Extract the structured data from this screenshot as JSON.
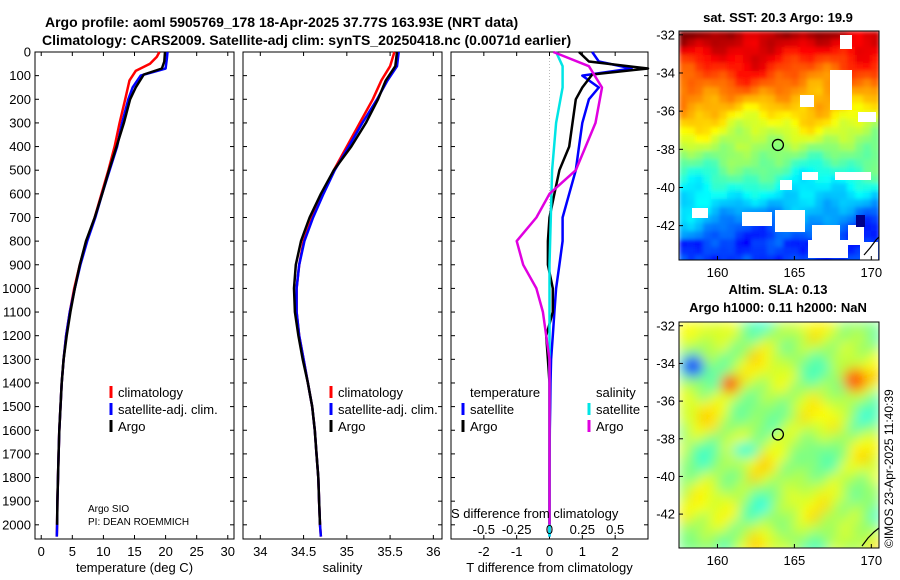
{
  "titles": {
    "line1": "Argo profile: aoml 5905769_178 18-Apr-2025 37.77S 163.93E (NRT data)",
    "line2": "Climatology: CARS2009. Satellite-adj clim: synTS_20250418.nc (0.0071d earlier)",
    "sst": "sat. SST: 20.3 Argo: 19.9",
    "sla1": "Altim. SLA: 0.13",
    "sla2": "Argo h1000: 0.11 h2000: NaN",
    "credit": "©IMOS 23-Apr-2025 11:40:39"
  },
  "notes": {
    "institution": "Argo SIO",
    "pi": "PI: DEAN ROEMMICH"
  },
  "colors": {
    "climatology": "#ff0000",
    "satellite": "#0000ff",
    "argo": "#000000",
    "sat_s": "#00e5e5",
    "argo_s": "#e000e0"
  },
  "chart_data": [
    {
      "type": "line",
      "name": "temperature-profile",
      "xlabel": "temperature (deg C)",
      "ylabel": "",
      "xlim": [
        -1,
        31
      ],
      "ylim": [
        2060,
        0
      ],
      "xticks": [
        0,
        5,
        10,
        15,
        20,
        25,
        30
      ],
      "yticks": [
        0,
        100,
        200,
        300,
        400,
        500,
        600,
        700,
        800,
        900,
        1000,
        1100,
        1200,
        1300,
        1400,
        1500,
        1600,
        1700,
        1800,
        1900,
        2000
      ],
      "legend": [
        "climatology",
        "satellite-adj. clim.",
        "Argo"
      ],
      "series": [
        {
          "name": "climatology",
          "color": "#ff0000",
          "points": [
            [
              19.0,
              0
            ],
            [
              18.6,
              20
            ],
            [
              17.5,
              50
            ],
            [
              15.2,
              80
            ],
            [
              14.2,
              120
            ],
            [
              13.5,
              200
            ],
            [
              12.6,
              300
            ],
            [
              11.8,
              400
            ],
            [
              10.8,
              500
            ],
            [
              9.7,
              600
            ],
            [
              8.6,
              700
            ],
            [
              7.3,
              800
            ],
            [
              6.2,
              900
            ],
            [
              5.3,
              1000
            ],
            [
              4.6,
              1100
            ],
            [
              4.0,
              1200
            ],
            [
              3.6,
              1300
            ],
            [
              3.3,
              1400
            ],
            [
              3.1,
              1500
            ],
            [
              2.9,
              1600
            ],
            [
              2.8,
              1700
            ],
            [
              2.7,
              1800
            ],
            [
              2.6,
              1900
            ],
            [
              2.55,
              2000
            ],
            [
              2.5,
              2050
            ]
          ]
        },
        {
          "name": "satellite-adj. clim.",
          "color": "#0000ff",
          "points": [
            [
              20.3,
              0
            ],
            [
              20.2,
              30
            ],
            [
              20.0,
              70
            ],
            [
              16.0,
              100
            ],
            [
              14.7,
              150
            ],
            [
              14.0,
              200
            ],
            [
              13.0,
              300
            ],
            [
              12.2,
              400
            ],
            [
              11.0,
              500
            ],
            [
              9.8,
              600
            ],
            [
              8.7,
              700
            ],
            [
              7.4,
              800
            ],
            [
              6.3,
              900
            ],
            [
              5.4,
              1000
            ],
            [
              4.6,
              1100
            ],
            [
              4.0,
              1200
            ],
            [
              3.6,
              1300
            ],
            [
              3.3,
              1400
            ],
            [
              3.1,
              1500
            ],
            [
              2.9,
              1600
            ],
            [
              2.8,
              1700
            ],
            [
              2.7,
              1800
            ],
            [
              2.6,
              1900
            ],
            [
              2.55,
              2000
            ],
            [
              2.5,
              2050
            ]
          ]
        },
        {
          "name": "Argo",
          "color": "#000000",
          "points": [
            [
              19.9,
              0
            ],
            [
              19.8,
              40
            ],
            [
              19.4,
              70
            ],
            [
              16.5,
              95
            ],
            [
              15.2,
              150
            ],
            [
              14.3,
              200
            ],
            [
              13.3,
              300
            ],
            [
              12.1,
              400
            ],
            [
              10.9,
              500
            ],
            [
              9.8,
              600
            ],
            [
              8.6,
              700
            ],
            [
              7.2,
              800
            ],
            [
              6.2,
              900
            ],
            [
              5.4,
              1000
            ],
            [
              4.7,
              1100
            ],
            [
              4.1,
              1200
            ],
            [
              3.6,
              1300
            ],
            [
              3.3,
              1400
            ],
            [
              3.1,
              1500
            ],
            [
              2.9,
              1600
            ],
            [
              2.8,
              1700
            ],
            [
              2.7,
              1800
            ],
            [
              2.6,
              1900
            ],
            [
              2.55,
              2000
            ]
          ]
        }
      ]
    },
    {
      "type": "line",
      "name": "salinity-profile",
      "xlabel": "salinity",
      "ylabel": "",
      "xlim": [
        33.8,
        36.1
      ],
      "ylim": [
        2060,
        0
      ],
      "xticks": [
        34,
        34.5,
        35,
        35.5,
        36
      ],
      "legend": [
        "climatology",
        "satellite-adj. clim.",
        "Argo"
      ],
      "series": [
        {
          "name": "climatology",
          "color": "#ff0000",
          "points": [
            [
              35.55,
              0
            ],
            [
              35.5,
              60
            ],
            [
              35.4,
              120
            ],
            [
              35.3,
              200
            ],
            [
              35.15,
              300
            ],
            [
              35.0,
              400
            ],
            [
              34.85,
              500
            ],
            [
              34.72,
              600
            ],
            [
              34.6,
              700
            ],
            [
              34.5,
              800
            ],
            [
              34.45,
              900
            ],
            [
              34.42,
              1000
            ],
            [
              34.42,
              1100
            ],
            [
              34.45,
              1200
            ],
            [
              34.5,
              1300
            ],
            [
              34.55,
              1400
            ],
            [
              34.6,
              1500
            ],
            [
              34.63,
              1600
            ],
            [
              34.65,
              1700
            ],
            [
              34.67,
              1800
            ],
            [
              34.68,
              1900
            ],
            [
              34.69,
              2000
            ],
            [
              34.7,
              2050
            ]
          ]
        },
        {
          "name": "satellite-adj. clim.",
          "color": "#0000ff",
          "points": [
            [
              35.6,
              0
            ],
            [
              35.58,
              60
            ],
            [
              35.47,
              120
            ],
            [
              35.35,
              200
            ],
            [
              35.18,
              300
            ],
            [
              35.02,
              400
            ],
            [
              34.86,
              500
            ],
            [
              34.73,
              600
            ],
            [
              34.61,
              700
            ],
            [
              34.51,
              800
            ],
            [
              34.45,
              900
            ],
            [
              34.42,
              1000
            ],
            [
              34.42,
              1100
            ],
            [
              34.45,
              1200
            ],
            [
              34.5,
              1300
            ],
            [
              34.55,
              1400
            ],
            [
              34.6,
              1500
            ],
            [
              34.63,
              1600
            ],
            [
              34.65,
              1700
            ],
            [
              34.67,
              1800
            ],
            [
              34.68,
              1900
            ],
            [
              34.69,
              2000
            ],
            [
              34.7,
              2050
            ]
          ]
        },
        {
          "name": "Argo",
          "color": "#000000",
          "points": [
            [
              35.58,
              0
            ],
            [
              35.56,
              60
            ],
            [
              35.45,
              120
            ],
            [
              35.36,
              200
            ],
            [
              35.22,
              300
            ],
            [
              35.05,
              400
            ],
            [
              34.85,
              500
            ],
            [
              34.7,
              600
            ],
            [
              34.57,
              700
            ],
            [
              34.47,
              800
            ],
            [
              34.41,
              900
            ],
            [
              34.39,
              1000
            ],
            [
              34.4,
              1100
            ],
            [
              34.44,
              1200
            ],
            [
              34.49,
              1300
            ],
            [
              34.55,
              1400
            ],
            [
              34.6,
              1500
            ],
            [
              34.63,
              1600
            ],
            [
              34.65,
              1700
            ],
            [
              34.67,
              1800
            ],
            [
              34.68,
              1900
            ],
            [
              34.69,
              2000
            ]
          ]
        }
      ]
    },
    {
      "type": "line",
      "name": "difference-profile",
      "xlabel": "T difference from climatology",
      "xlabel_top": "S difference from climatology",
      "xlim": [
        -3,
        3
      ],
      "ylim": [
        2060,
        0
      ],
      "xticks": [
        -2,
        -1,
        0,
        1,
        2
      ],
      "s_ticks": [
        "-0.5",
        "-0.25",
        "0",
        "0.25",
        "0.5"
      ],
      "legend_t_title": "temperature",
      "legend_s_title": "salinity",
      "legend_t": [
        "satellite",
        "Argo"
      ],
      "legend_s": [
        "satellite",
        "Argo"
      ],
      "series": [
        {
          "name": "T satellite",
          "color": "#0000ff",
          "points": [
            [
              1.3,
              0
            ],
            [
              1.5,
              40
            ],
            [
              2.5,
              70
            ],
            [
              1.0,
              100
            ],
            [
              1.5,
              150
            ],
            [
              1.2,
              200
            ],
            [
              1.0,
              300
            ],
            [
              0.9,
              400
            ],
            [
              0.8,
              500
            ],
            [
              0.6,
              600
            ],
            [
              0.4,
              700
            ],
            [
              0.4,
              800
            ],
            [
              0.3,
              900
            ],
            [
              0.2,
              1000
            ],
            [
              0.15,
              1100
            ],
            [
              0.1,
              1200
            ],
            [
              0.05,
              1300
            ],
            [
              0.03,
              1400
            ],
            [
              0.02,
              1500
            ],
            [
              0.01,
              1600
            ],
            [
              0,
              1800
            ],
            [
              0,
              2050
            ]
          ]
        },
        {
          "name": "T Argo",
          "color": "#000000",
          "points": [
            [
              0.9,
              0
            ],
            [
              1.2,
              40
            ],
            [
              3.0,
              70
            ],
            [
              1.3,
              95
            ],
            [
              1.0,
              150
            ],
            [
              0.8,
              200
            ],
            [
              0.7,
              300
            ],
            [
              0.6,
              400
            ],
            [
              0.3,
              500
            ],
            [
              0.15,
              600
            ],
            [
              0,
              700
            ],
            [
              -0.05,
              800
            ],
            [
              -0.05,
              900
            ],
            [
              0.1,
              1000
            ],
            [
              0.1,
              1100
            ],
            [
              -0.1,
              1200
            ],
            [
              -0.05,
              1300
            ],
            [
              0,
              1400
            ],
            [
              0,
              1500
            ],
            [
              0,
              1700
            ],
            [
              0,
              2000
            ]
          ]
        },
        {
          "name": "S satellite",
          "color": "#00e5e5",
          "points": [
            [
              0.05,
              0
            ],
            [
              0.1,
              60
            ],
            [
              0.1,
              150
            ],
            [
              0.05,
              300
            ],
            [
              0.02,
              500
            ],
            [
              0.01,
              700
            ],
            [
              0,
              900
            ],
            [
              0,
              1200
            ],
            [
              0,
              1600
            ],
            [
              0,
              2050
            ]
          ]
        },
        {
          "name": "S Argo",
          "color": "#e000e0",
          "points": [
            [
              0.03,
              0
            ],
            [
              0.3,
              60
            ],
            [
              0.4,
              150
            ],
            [
              0.35,
              300
            ],
            [
              0.2,
              500
            ],
            [
              0,
              600
            ],
            [
              -0.1,
              700
            ],
            [
              -0.25,
              800
            ],
            [
              -0.2,
              900
            ],
            [
              -0.1,
              1000
            ],
            [
              -0.05,
              1100
            ],
            [
              0,
              1300
            ],
            [
              0,
              1400
            ],
            [
              0,
              1500
            ],
            [
              0,
              2000
            ]
          ]
        }
      ]
    },
    {
      "type": "heatmap",
      "name": "sst-map",
      "title": "sat. SST: 20.3 Argo: 19.9",
      "xlim": [
        157.5,
        170.5
      ],
      "ylim": [
        -43.8,
        -31.8
      ],
      "xticks": [
        160,
        165,
        170
      ],
      "yticks": [
        -32,
        -34,
        -36,
        -38,
        -40,
        -42
      ],
      "marker": {
        "lon": 163.93,
        "lat": -37.77
      }
    },
    {
      "type": "heatmap",
      "name": "sla-map",
      "title": "Altim. SLA: 0.13",
      "xlim": [
        157.5,
        170.5
      ],
      "ylim": [
        -43.8,
        -31.8
      ],
      "xticks": [
        160,
        165,
        170
      ],
      "yticks": [
        -32,
        -34,
        -36,
        -38,
        -40,
        -42
      ],
      "marker": {
        "lon": 163.93,
        "lat": -37.77
      }
    }
  ]
}
